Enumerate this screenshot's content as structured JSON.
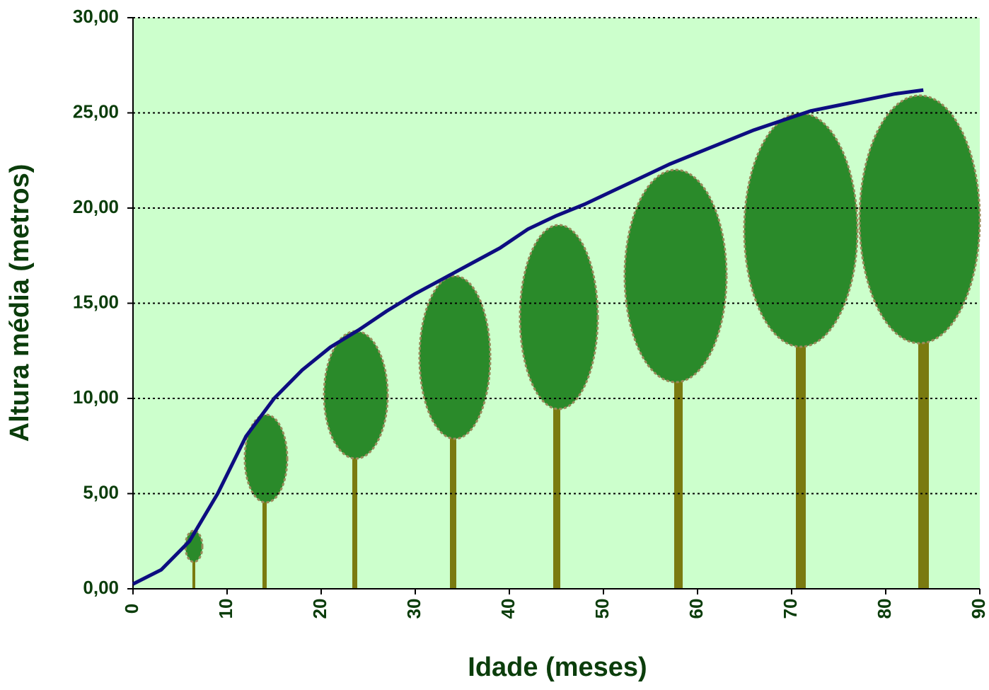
{
  "chart_data": {
    "type": "line",
    "x_label": "Idade (meses)",
    "y_label": "Altura média (metros)",
    "series": [
      {
        "name": "Altura média",
        "color": "#0d0d80",
        "x": [
          0,
          3,
          6,
          9,
          12,
          15,
          18,
          21,
          24,
          27,
          30,
          33,
          36,
          39,
          42,
          45,
          48,
          51,
          54,
          57,
          60,
          63,
          66,
          69,
          72,
          75,
          78,
          81,
          84
        ],
        "values": [
          0.25,
          1.0,
          2.5,
          5.0,
          8.0,
          10.0,
          11.5,
          12.7,
          13.6,
          14.6,
          15.5,
          16.3,
          17.1,
          17.9,
          18.9,
          19.6,
          20.2,
          20.9,
          21.6,
          22.3,
          22.9,
          23.5,
          24.1,
          24.6,
          25.1,
          25.4,
          25.7,
          26.0,
          26.2
        ]
      }
    ],
    "xlim": [
      0,
      90
    ],
    "xticks": [
      0,
      10,
      20,
      30,
      40,
      50,
      60,
      70,
      80,
      90
    ],
    "ylim": [
      0,
      30
    ],
    "yticks": [
      {
        "value": 0,
        "label": "0,00"
      },
      {
        "value": 5,
        "label": "5,00"
      },
      {
        "value": 10,
        "label": "10,00"
      },
      {
        "value": 15,
        "label": "15,00"
      },
      {
        "value": 20,
        "label": "20,00"
      },
      {
        "value": 25,
        "label": "25,00"
      },
      {
        "value": 30,
        "label": "30,00"
      }
    ],
    "grid": true
  }
}
